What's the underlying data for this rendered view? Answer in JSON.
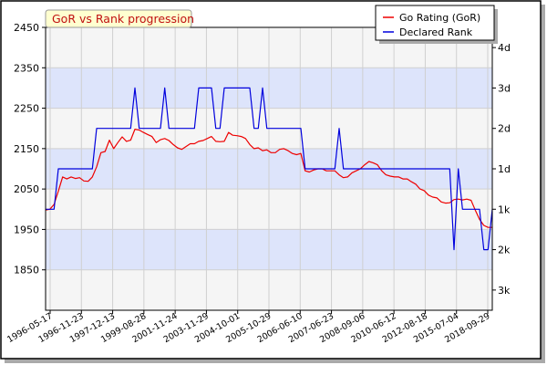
{
  "chart_data": {
    "type": "line",
    "title": "GoR vs Rank progression",
    "x_tick_labels": [
      "1996-05-17",
      "1996-11-23",
      "1997-12-13",
      "1999-08-28",
      "2001-11-24",
      "2003-11-29",
      "2004-10-01",
      "2005-10-29",
      "2006-06-10",
      "2007-06-23",
      "2008-09-06",
      "2010-06-12",
      "2012-08-18",
      "2015-07-04",
      "2018-09-29"
    ],
    "left_axis": {
      "ylim": [
        1750,
        2450
      ],
      "ticks": [
        1850,
        1950,
        2050,
        2150,
        2250,
        2350,
        2450
      ]
    },
    "right_axis": {
      "labels": [
        "4d",
        "3d",
        "2d",
        "1d",
        "1k",
        "2k",
        "3k"
      ],
      "values": [
        2400,
        2300,
        2200,
        2100,
        2000,
        1900,
        1800
      ]
    },
    "bands": [
      [
        1850,
        1950
      ],
      [
        2050,
        2150
      ],
      [
        2250,
        2350
      ]
    ],
    "grid": true,
    "legend_position": "top-right",
    "series": [
      {
        "name": "Go Rating (GoR)",
        "color": "#ee0000",
        "values": [
          1998,
          2000,
          2012,
          2045,
          2080,
          2075,
          2080,
          2076,
          2078,
          2070,
          2069,
          2080,
          2105,
          2140,
          2143,
          2171,
          2150,
          2165,
          2179,
          2168,
          2171,
          2198,
          2196,
          2190,
          2185,
          2180,
          2165,
          2172,
          2175,
          2170,
          2160,
          2152,
          2148,
          2155,
          2162,
          2162,
          2168,
          2170,
          2175,
          2180,
          2168,
          2167,
          2168,
          2190,
          2183,
          2182,
          2180,
          2175,
          2160,
          2150,
          2152,
          2145,
          2147,
          2140,
          2140,
          2148,
          2150,
          2145,
          2138,
          2135,
          2138,
          2095,
          2092,
          2097,
          2100,
          2100,
          2095,
          2095,
          2095,
          2085,
          2078,
          2080,
          2090,
          2095,
          2100,
          2110,
          2118,
          2115,
          2110,
          2095,
          2085,
          2082,
          2080,
          2080,
          2075,
          2075,
          2068,
          2062,
          2050,
          2046,
          2035,
          2030,
          2028,
          2018,
          2015,
          2016,
          2024,
          2025,
          2023,
          2025,
          2022,
          1998,
          1975,
          1960,
          1955,
          1955
        ]
      },
      {
        "name": "Declared Rank",
        "color": "#0000dd",
        "values": [
          2000,
          2000,
          2000,
          2100,
          2100,
          2100,
          2100,
          2100,
          2100,
          2100,
          2100,
          2100,
          2200,
          2200,
          2200,
          2200,
          2200,
          2200,
          2200,
          2200,
          2200,
          2300,
          2200,
          2200,
          2200,
          2200,
          2200,
          2200,
          2300,
          2200,
          2200,
          2200,
          2200,
          2200,
          2200,
          2200,
          2300,
          2300,
          2300,
          2300,
          2200,
          2200,
          2300,
          2300,
          2300,
          2300,
          2300,
          2300,
          2300,
          2200,
          2200,
          2300,
          2200,
          2200,
          2200,
          2200,
          2200,
          2200,
          2200,
          2200,
          2200,
          2100,
          2100,
          2100,
          2100,
          2100,
          2100,
          2100,
          2100,
          2200,
          2100,
          2100,
          2100,
          2100,
          2100,
          2100,
          2100,
          2100,
          2100,
          2100,
          2100,
          2100,
          2100,
          2100,
          2100,
          2100,
          2100,
          2100,
          2100,
          2100,
          2100,
          2100,
          2100,
          2100,
          2100,
          2100,
          1900,
          2100,
          2000,
          2000,
          2000,
          2000,
          2000,
          1900,
          1900,
          2000
        ]
      }
    ]
  }
}
